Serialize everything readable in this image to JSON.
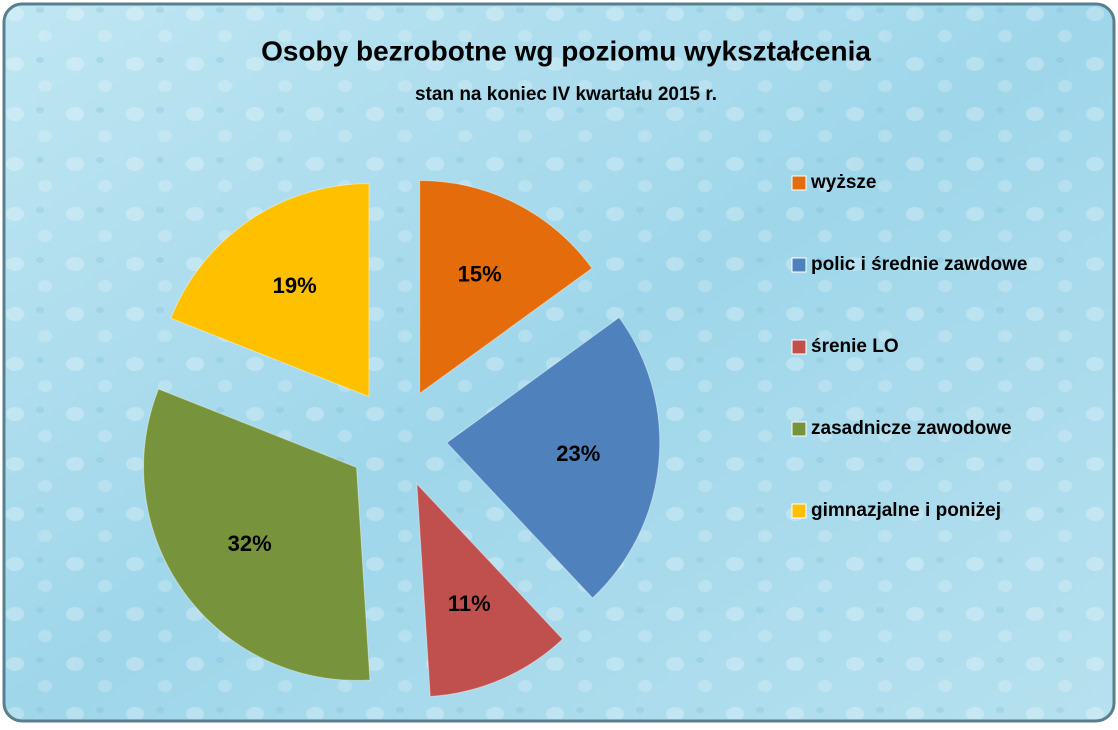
{
  "chart_data": {
    "type": "pie",
    "title": "Osoby bezrobotne wg poziomu wykształcenia",
    "subtitle": "stan na koniec IV kwartału 2015 r.",
    "categories": [
      "wyższe",
      "polic i średnie zawdowe",
      "śrenie LO",
      "zasadnicze zawodowe",
      "gimnazjalne i poniżej"
    ],
    "values": [
      15,
      23,
      11,
      32,
      19
    ],
    "value_labels": [
      "15%",
      "23%",
      "11%",
      "32%",
      "19%"
    ],
    "colors": [
      "#e46c0a",
      "#4f81bd",
      "#c0504d",
      "#77933c",
      "#ffc000"
    ],
    "legend": "right"
  }
}
